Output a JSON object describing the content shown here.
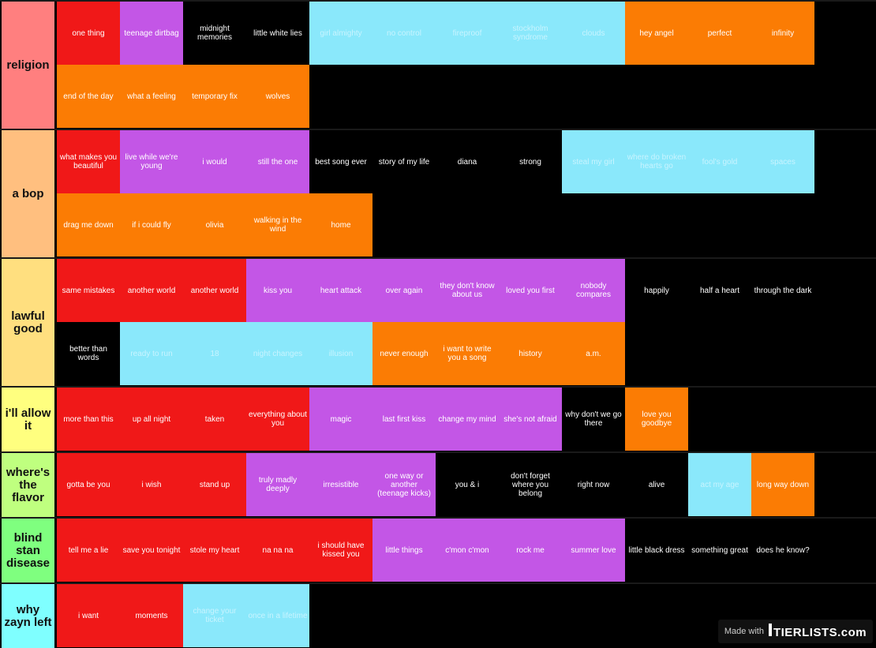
{
  "palette": {
    "red": "#f01818",
    "purple": "#c356e6",
    "black": "#000000",
    "cyan": "#8ae8fb",
    "orange": "#fb7c04"
  },
  "tiers": [
    {
      "label": "religion",
      "color": "#ff7f7f",
      "items": [
        {
          "text": "one thing",
          "color": "red"
        },
        {
          "text": "teenage dirtbag",
          "color": "purple"
        },
        {
          "text": "midnight memories",
          "color": "black"
        },
        {
          "text": "little white lies",
          "color": "black"
        },
        {
          "text": "girl almighty",
          "color": "cyan"
        },
        {
          "text": "no control",
          "color": "cyan"
        },
        {
          "text": "fireproof",
          "color": "cyan"
        },
        {
          "text": "stockholm syndrome",
          "color": "cyan"
        },
        {
          "text": "clouds",
          "color": "cyan"
        },
        {
          "text": "hey angel",
          "color": "orange"
        },
        {
          "text": "perfect",
          "color": "orange"
        },
        {
          "text": "infinity",
          "color": "orange"
        },
        {
          "text": "end of the day",
          "color": "orange"
        },
        {
          "text": "what a feeling",
          "color": "orange"
        },
        {
          "text": "temporary fix",
          "color": "orange"
        },
        {
          "text": "wolves",
          "color": "orange"
        }
      ]
    },
    {
      "label": "a bop",
      "color": "#ffbf7f",
      "items": [
        {
          "text": "what makes you beautiful",
          "color": "red"
        },
        {
          "text": "live while we're young",
          "color": "purple"
        },
        {
          "text": "i would",
          "color": "purple"
        },
        {
          "text": "still the one",
          "color": "purple"
        },
        {
          "text": "best song ever",
          "color": "black"
        },
        {
          "text": "story of my life",
          "color": "black"
        },
        {
          "text": "diana",
          "color": "black"
        },
        {
          "text": "strong",
          "color": "black"
        },
        {
          "text": "steal my girl",
          "color": "cyan"
        },
        {
          "text": "where do broken hearts go",
          "color": "cyan"
        },
        {
          "text": "fool's gold",
          "color": "cyan"
        },
        {
          "text": "spaces",
          "color": "cyan"
        },
        {
          "text": "drag me down",
          "color": "orange"
        },
        {
          "text": "if i could fly",
          "color": "orange"
        },
        {
          "text": "olivia",
          "color": "orange"
        },
        {
          "text": "walking in the wind",
          "color": "orange"
        },
        {
          "text": "home",
          "color": "orange"
        }
      ]
    },
    {
      "label": "lawful good",
      "color": "#ffdf7f",
      "items": [
        {
          "text": "same mistakes",
          "color": "red"
        },
        {
          "text": "another world",
          "color": "red"
        },
        {
          "text": "another world",
          "color": "red"
        },
        {
          "text": "kiss you",
          "color": "purple"
        },
        {
          "text": "heart attack",
          "color": "purple"
        },
        {
          "text": "over again",
          "color": "purple"
        },
        {
          "text": "they don't know about us",
          "color": "purple"
        },
        {
          "text": "loved you first",
          "color": "purple"
        },
        {
          "text": "nobody compares",
          "color": "purple"
        },
        {
          "text": "happily",
          "color": "black"
        },
        {
          "text": "half a heart",
          "color": "black"
        },
        {
          "text": "through the dark",
          "color": "black"
        },
        {
          "text": "better than words",
          "color": "black"
        },
        {
          "text": "ready to run",
          "color": "cyan"
        },
        {
          "text": "18",
          "color": "cyan"
        },
        {
          "text": "night changes",
          "color": "cyan"
        },
        {
          "text": "illusion",
          "color": "cyan"
        },
        {
          "text": "never enough",
          "color": "orange"
        },
        {
          "text": "i want to write you a song",
          "color": "orange"
        },
        {
          "text": "history",
          "color": "orange"
        },
        {
          "text": "a.m.",
          "color": "orange"
        }
      ]
    },
    {
      "label": "i'll allow it",
      "color": "#ffff7f",
      "items": [
        {
          "text": "more than this",
          "color": "red"
        },
        {
          "text": "up all night",
          "color": "red"
        },
        {
          "text": "taken",
          "color": "red"
        },
        {
          "text": "everything about you",
          "color": "red"
        },
        {
          "text": "magic",
          "color": "purple"
        },
        {
          "text": "last first kiss",
          "color": "purple"
        },
        {
          "text": "change my mind",
          "color": "purple"
        },
        {
          "text": "she's not afraid",
          "color": "purple"
        },
        {
          "text": "why don't we go there",
          "color": "black"
        },
        {
          "text": "love you goodbye",
          "color": "orange"
        }
      ]
    },
    {
      "label": "where's the flavor",
      "color": "#bfff7f",
      "items": [
        {
          "text": "gotta be you",
          "color": "red"
        },
        {
          "text": "i wish",
          "color": "red"
        },
        {
          "text": "stand up",
          "color": "red"
        },
        {
          "text": "truly madly deeply",
          "color": "purple"
        },
        {
          "text": "irresistible",
          "color": "purple"
        },
        {
          "text": "one way or another (teenage kicks)",
          "color": "purple"
        },
        {
          "text": "you & i",
          "color": "black"
        },
        {
          "text": "don't forget where you belong",
          "color": "black"
        },
        {
          "text": "right now",
          "color": "black"
        },
        {
          "text": "alive",
          "color": "black"
        },
        {
          "text": "act my age",
          "color": "cyan"
        },
        {
          "text": "long way down",
          "color": "orange"
        }
      ]
    },
    {
      "label": "blind stan disease",
      "color": "#7fff7f",
      "items": [
        {
          "text": "tell me a lie",
          "color": "red"
        },
        {
          "text": "save you tonight",
          "color": "red"
        },
        {
          "text": "stole my heart",
          "color": "red"
        },
        {
          "text": "na na na",
          "color": "red"
        },
        {
          "text": "i should have kissed you",
          "color": "red"
        },
        {
          "text": "little things",
          "color": "purple"
        },
        {
          "text": "c'mon c'mon",
          "color": "purple"
        },
        {
          "text": "rock me",
          "color": "purple"
        },
        {
          "text": "summer love",
          "color": "purple"
        },
        {
          "text": "little black dress",
          "color": "black"
        },
        {
          "text": "something great",
          "color": "black"
        },
        {
          "text": "does he know?",
          "color": "black"
        }
      ]
    },
    {
      "label": "why zayn left",
      "color": "#7fffff",
      "items": [
        {
          "text": "i want",
          "color": "red"
        },
        {
          "text": "moments",
          "color": "red"
        },
        {
          "text": "change your ticket",
          "color": "cyan"
        },
        {
          "text": "once in a lifetime",
          "color": "cyan"
        }
      ]
    }
  ],
  "watermark": {
    "made_with": "Made with",
    "brand": "TIERLISTS.com"
  }
}
